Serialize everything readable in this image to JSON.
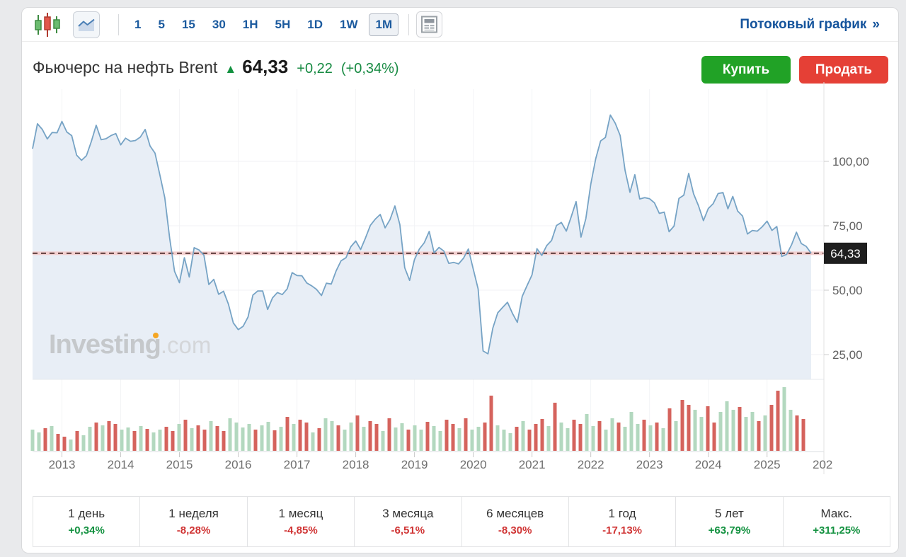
{
  "toolbar": {
    "icons": [
      "candlestick-chart-icon",
      "area-chart-icon",
      "news-panel-icon"
    ],
    "timeframes": [
      {
        "label": "1",
        "selected": false
      },
      {
        "label": "5",
        "selected": false
      },
      {
        "label": "15",
        "selected": false
      },
      {
        "label": "30",
        "selected": false
      },
      {
        "label": "1H",
        "selected": false
      },
      {
        "label": "5H",
        "selected": false
      },
      {
        "label": "1D",
        "selected": false
      },
      {
        "label": "1W",
        "selected": false
      },
      {
        "label": "1M",
        "selected": true
      }
    ],
    "stream_link_label": "Потоковый график",
    "stream_link_chevron": "»"
  },
  "header": {
    "title": "Фьючерс на нефть Brent",
    "arrow": "▲",
    "price": "64,33",
    "change": "+0,22",
    "change_pct": "(+0,34%)",
    "buy_label": "Купить",
    "sell_label": "Продать",
    "up_color": "#12913f",
    "buy_color": "#21a226",
    "sell_color": "#e54036"
  },
  "chart_data": {
    "type": "area",
    "title": "Фьючерс на нефть Brent, месячный график",
    "x_start": "2012-07",
    "x_step_months": 1,
    "x_tick_labels": [
      "2013",
      "2014",
      "2015",
      "2016",
      "2017",
      "2018",
      "2019",
      "2020",
      "2021",
      "2022",
      "2023",
      "2024",
      "2025"
    ],
    "x_tick_label_clipped": "202",
    "y_ticks": [
      100,
      75,
      50,
      25
    ],
    "y_tick_labels": [
      "100,00",
      "75,00",
      "50,00",
      "25,00"
    ],
    "ylim": [
      16,
      127
    ],
    "grid": true,
    "legend": false,
    "current_price": 64.33,
    "current_price_label": "64,33",
    "line_color": "#76a3c5",
    "fill_color": "#e8eef6",
    "dash_color": "#5f3f3f",
    "dash_underlay": "#f3cfcf",
    "badge_bg": "#1e1e1e",
    "values": [
      104.9,
      114.6,
      112.4,
      108.7,
      111.2,
      111.1,
      115.5,
      111.4,
      110.0,
      102.4,
      100.4,
      102.2,
      107.7,
      114.0,
      108.4,
      108.8,
      110.0,
      110.8,
      106.4,
      109.0,
      107.8,
      108.1,
      109.4,
      112.4,
      106.0,
      103.2,
      94.7,
      85.9,
      70.2,
      57.3,
      52.9,
      62.6,
      55.1,
      66.5,
      65.6,
      63.6,
      52.2,
      54.2,
      48.4,
      49.6,
      44.6,
      37.3,
      34.7,
      36.0,
      39.6,
      48.1,
      49.7,
      49.7,
      42.5,
      47.0,
      49.1,
      48.3,
      50.5,
      56.8,
      55.7,
      55.6,
      52.8,
      51.7,
      50.3,
      47.9,
      52.7,
      52.4,
      57.5,
      61.4,
      62.6,
      66.9,
      69.1,
      65.8,
      70.3,
      75.2,
      77.6,
      79.4,
      74.2,
      77.4,
      82.7,
      75.5,
      58.7,
      53.8,
      61.9,
      66.0,
      68.4,
      72.8,
      64.5,
      66.6,
      65.2,
      60.4,
      60.8,
      60.2,
      62.4,
      66.0,
      58.2,
      50.5,
      26.4,
      25.3,
      35.3,
      41.2,
      43.3,
      45.3,
      41.0,
      37.5,
      47.6,
      51.8,
      55.9,
      66.1,
      63.5,
      67.3,
      69.3,
      75.1,
      76.3,
      72.9,
      78.5,
      84.4,
      70.6,
      77.8,
      91.2,
      101.0,
      107.9,
      109.3,
      118.0,
      114.8,
      110.0,
      96.5,
      88.0,
      94.8,
      85.4,
      85.9,
      85.5,
      83.9,
      79.8,
      80.3,
      72.7,
      74.9,
      85.6,
      86.9,
      95.3,
      87.4,
      82.8,
      77.0,
      81.7,
      83.6,
      87.5,
      87.9,
      81.6,
      86.4,
      80.7,
      78.8,
      71.8,
      73.2,
      72.9,
      74.6,
      76.8,
      73.2,
      74.7,
      63.1,
      63.9,
      67.6,
      72.5,
      68.1,
      67.0,
      64.33
    ],
    "volume": {
      "up_color": "#b3d8bf",
      "down_color": "#d5635d",
      "heights": [
        30,
        26,
        32,
        35,
        24,
        20,
        16,
        28,
        22,
        34,
        40,
        36,
        42,
        38,
        30,
        33,
        28,
        35,
        31,
        26,
        30,
        34,
        28,
        38,
        44,
        32,
        36,
        30,
        42,
        35,
        28,
        46,
        40,
        33,
        38,
        30,
        36,
        41,
        29,
        34,
        48,
        38,
        44,
        40,
        26,
        32,
        46,
        42,
        36,
        30,
        40,
        50,
        34,
        42,
        38,
        28,
        46,
        33,
        39,
        30,
        36,
        30,
        41,
        35,
        28,
        44,
        38,
        32,
        46,
        30,
        34,
        40,
        78,
        36,
        30,
        25,
        34,
        42,
        30,
        38,
        45,
        35,
        68,
        40,
        32,
        44,
        38,
        52,
        35,
        42,
        30,
        46,
        40,
        34,
        55,
        38,
        44,
        36,
        40,
        32,
        60,
        42,
        72,
        65,
        58,
        48,
        63,
        40,
        55,
        70,
        58,
        62,
        48,
        55,
        42,
        50,
        65,
        85,
        90,
        58,
        50,
        45
      ],
      "colors": "ggrgrrgrggrgrrggrgrggrrgrgrrgrrggggrggrgrgrrgrggrggrgrrgrggrggrggrrgrggrrgggrgrrrgrggrrggrggrgggrgrgrgrrggrrgggrggrgrrggrr"
    }
  },
  "performance": {
    "cells": [
      {
        "label": "1 день",
        "value": "+0,34%",
        "dir": "up"
      },
      {
        "label": "1 неделя",
        "value": "-8,28%",
        "dir": "down"
      },
      {
        "label": "1 месяц",
        "value": "-4,85%",
        "dir": "down"
      },
      {
        "label": "3 месяца",
        "value": "-6,51%",
        "dir": "down"
      },
      {
        "label": "6 месяцев",
        "value": "-8,30%",
        "dir": "down"
      },
      {
        "label": "1 год",
        "value": "-17,13%",
        "dir": "down"
      },
      {
        "label": "5 лет",
        "value": "+63,79%",
        "dir": "up"
      },
      {
        "label": "Макс.",
        "value": "+311,25%",
        "dir": "up"
      }
    ]
  },
  "watermark": {
    "name": "Investing",
    "ext": ".com"
  }
}
